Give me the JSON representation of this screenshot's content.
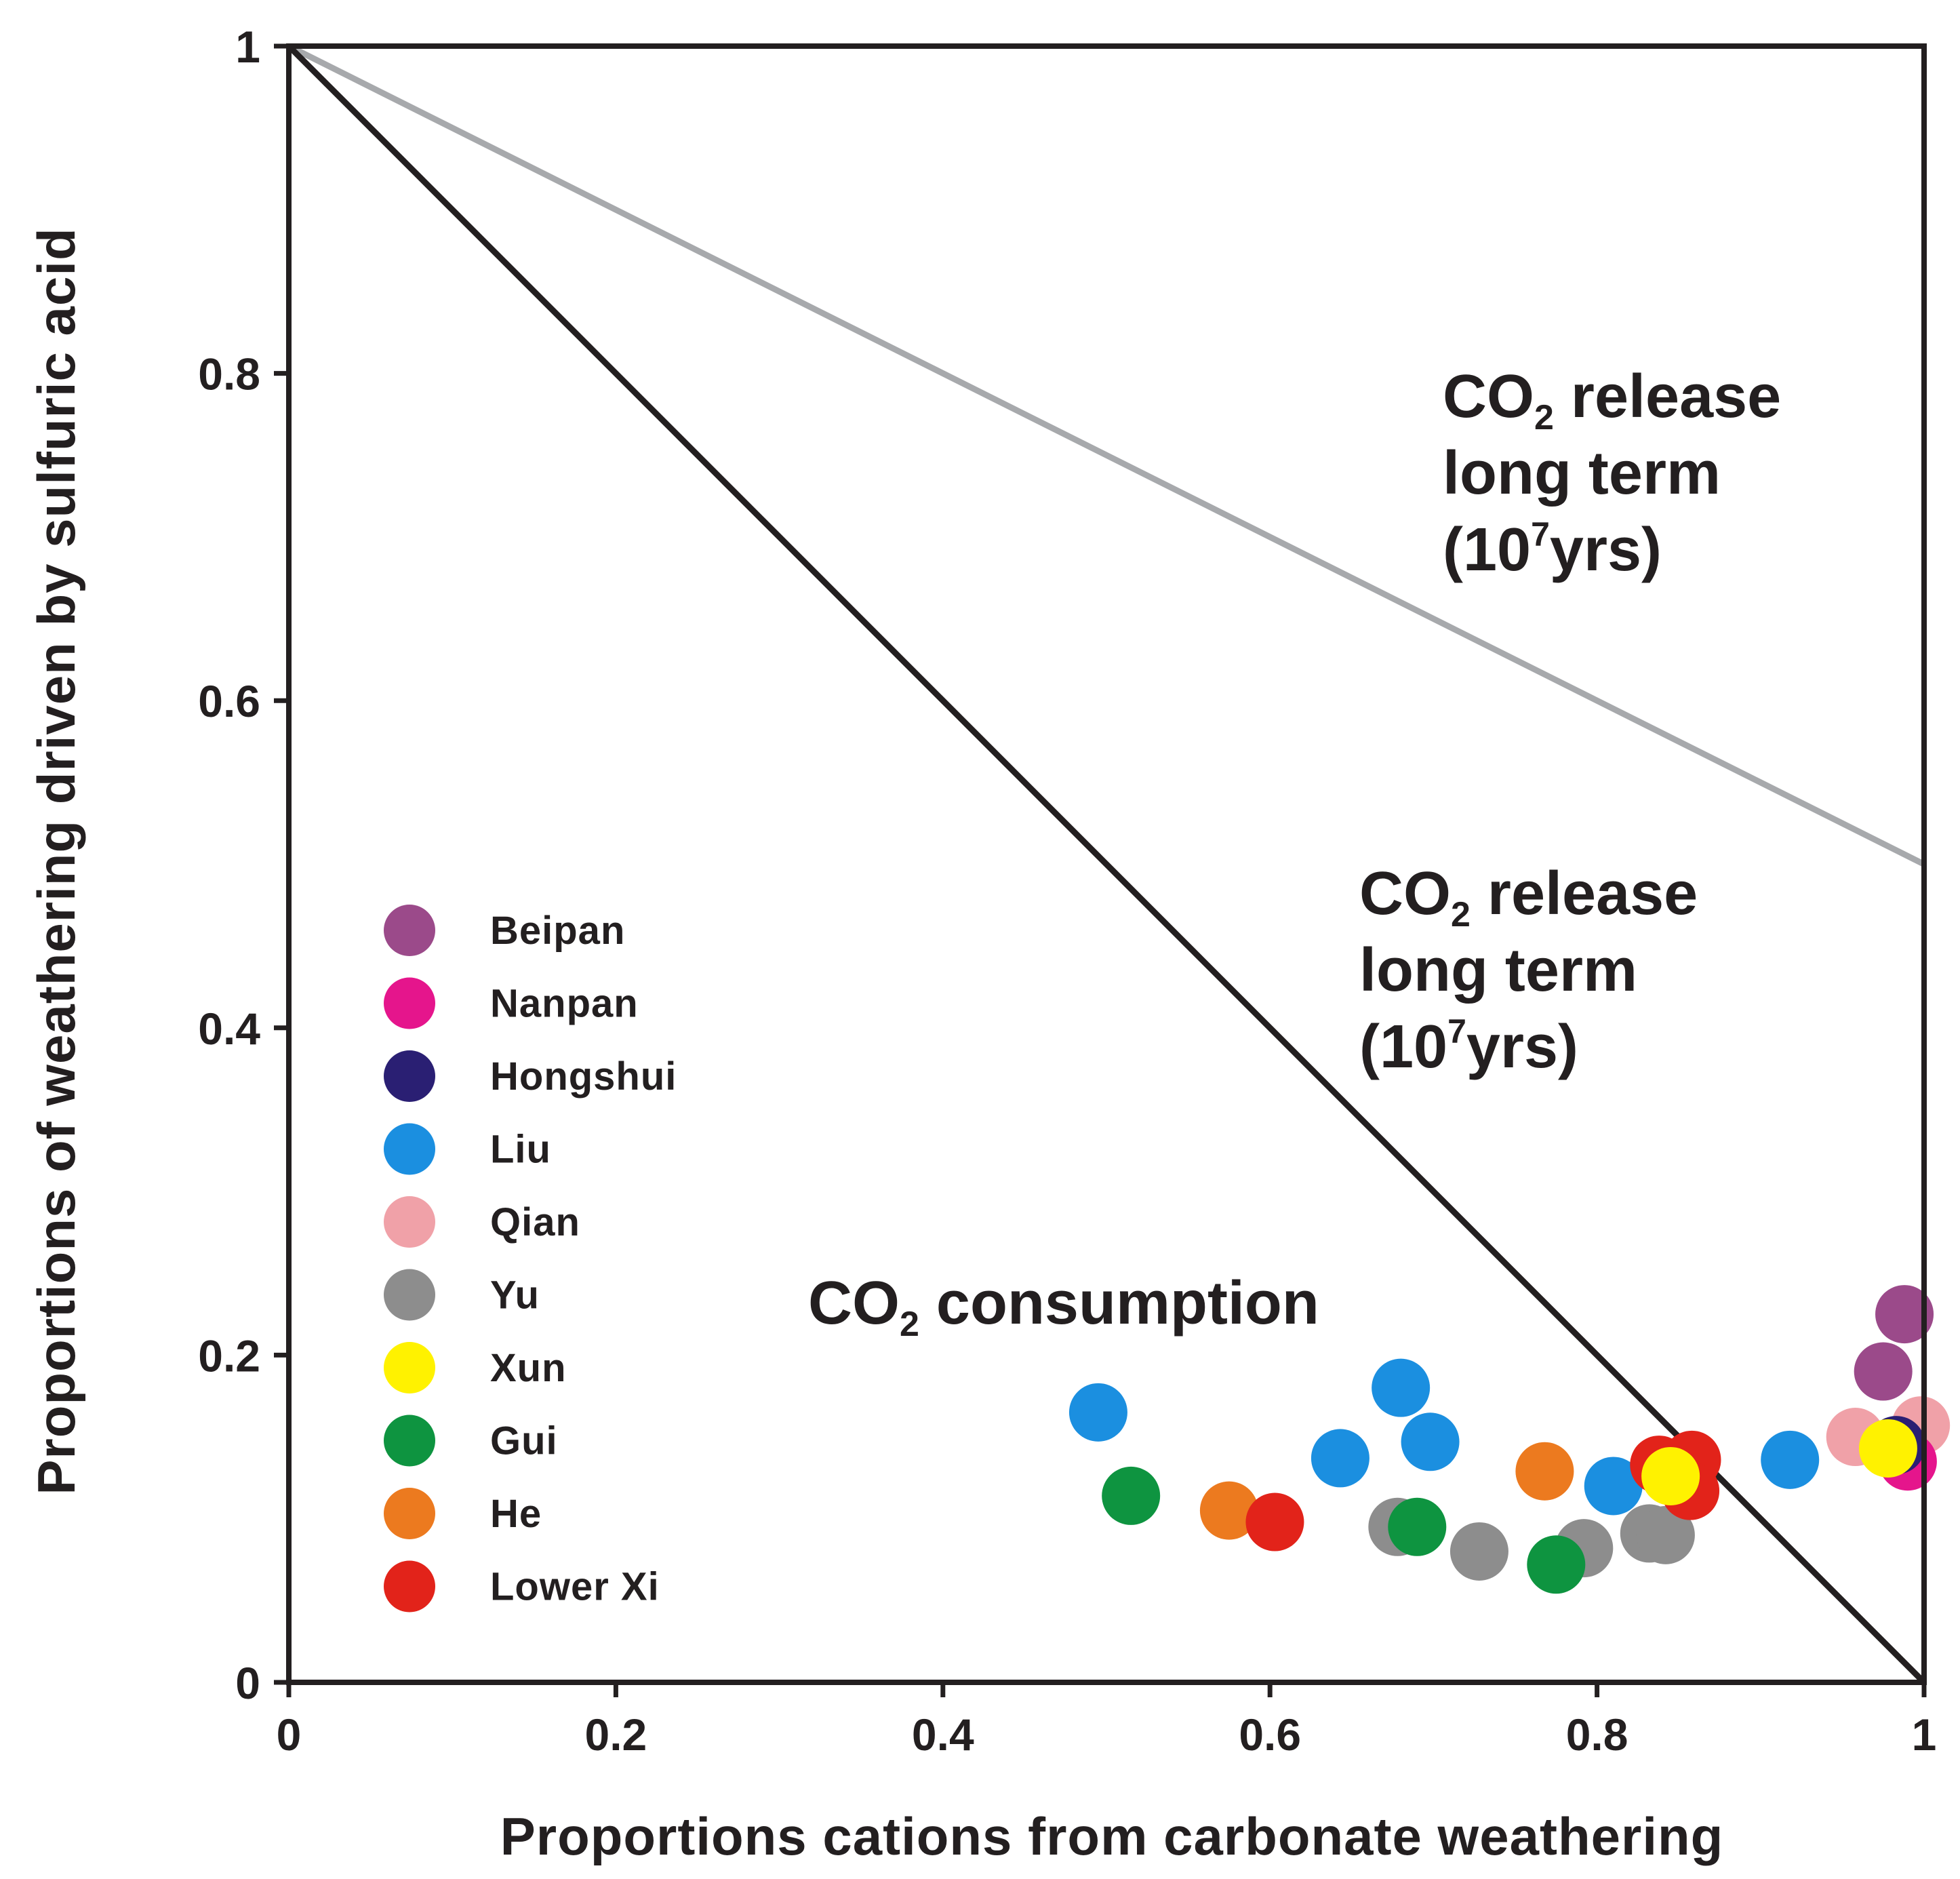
{
  "chart_data": {
    "type": "scatter",
    "xlabel": "Proportions cations from carbonate weathering",
    "ylabel": "Proportions of weathering driven by sulfuric acid",
    "xlim": [
      0,
      1
    ],
    "ylim": [
      0,
      1
    ],
    "xticks": [
      "0",
      "0.2",
      "0.4",
      "0.6",
      "0.8",
      "1"
    ],
    "yticks": [
      "0",
      "0.2",
      "0.4",
      "0.6",
      "0.8",
      "1"
    ],
    "grid": false,
    "legend_position": "left",
    "reference_lines": [
      {
        "name": "black-line",
        "color": "#231f20",
        "points": [
          [
            0,
            1
          ],
          [
            1,
            0
          ]
        ]
      },
      {
        "name": "gray-line",
        "color": "#a7a9ac",
        "points": [
          [
            0,
            1
          ],
          [
            1,
            0.5
          ]
        ]
      }
    ],
    "annotations": [
      {
        "id": "upper",
        "lines": [
          "CO",
          "2",
          " release",
          "long term",
          "(10",
          "7",
          "yrs)"
        ],
        "text": "CO2 release long term (10^7 yrs)"
      },
      {
        "id": "middle",
        "lines": [
          "CO",
          "2",
          " release",
          "long term",
          "(10",
          "7",
          "yrs)"
        ],
        "text": "CO2 release long term (10^7 yrs)"
      },
      {
        "id": "lower",
        "text": "CO2 consumption",
        "main": "CO",
        "sub": "2",
        "rest": " consumption"
      }
    ],
    "series": [
      {
        "name": "Beipan",
        "color": "#9b4a8a",
        "points": [
          [
            0.988,
            0.225
          ],
          [
            0.975,
            0.19
          ]
        ]
      },
      {
        "name": "Nanpan",
        "color": "#e5158c",
        "points": [
          [
            0.99,
            0.135
          ]
        ]
      },
      {
        "name": "Hongshui",
        "color": "#2a1f73",
        "points": [
          [
            0.983,
            0.145
          ]
        ]
      },
      {
        "name": "Liu",
        "color": "#1b8fe0",
        "points": [
          [
            0.495,
            0.165
          ],
          [
            0.68,
            0.18
          ],
          [
            0.698,
            0.147
          ],
          [
            0.643,
            0.137
          ],
          [
            0.81,
            0.12
          ],
          [
            0.918,
            0.136
          ]
        ]
      },
      {
        "name": "Qian",
        "color": "#f0a1a8",
        "points": [
          [
            0.958,
            0.15
          ],
          [
            0.998,
            0.157
          ]
        ]
      },
      {
        "name": "Yu",
        "color": "#8d8d8d",
        "points": [
          [
            0.678,
            0.095
          ],
          [
            0.728,
            0.08
          ],
          [
            0.792,
            0.082
          ],
          [
            0.832,
            0.091
          ],
          [
            0.842,
            0.09
          ]
        ]
      },
      {
        "name": "Xun",
        "color": "#fff200",
        "points": [
          [
            0.845,
            0.126
          ],
          [
            0.978,
            0.143
          ]
        ]
      },
      {
        "name": "Gui",
        "color": "#0e9440",
        "points": [
          [
            0.515,
            0.114
          ],
          [
            0.69,
            0.095
          ],
          [
            0.775,
            0.072
          ]
        ]
      },
      {
        "name": "He",
        "color": "#ec7a1f",
        "points": [
          [
            0.575,
            0.105
          ],
          [
            0.768,
            0.129
          ]
        ]
      },
      {
        "name": "Lower Xi",
        "color": "#e2231a",
        "points": [
          [
            0.603,
            0.098
          ],
          [
            0.838,
            0.133
          ],
          [
            0.858,
            0.136
          ],
          [
            0.857,
            0.117
          ]
        ]
      }
    ]
  }
}
